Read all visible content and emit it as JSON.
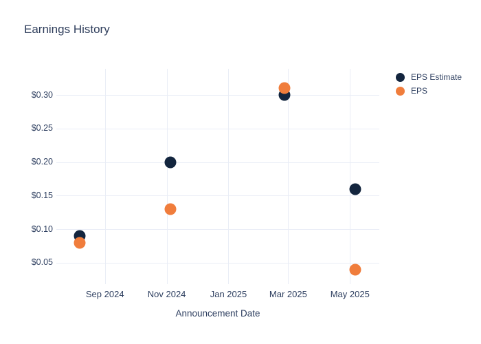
{
  "title": "Earnings History",
  "chart_data": {
    "type": "scatter",
    "title": "Earnings History",
    "xlabel": "Announcement Date",
    "ylabel": "",
    "grid": true,
    "legend_position": "right",
    "x_tick_labels": [
      "Sep 2024",
      "Nov 2024",
      "Jan 2025",
      "Mar 2025",
      "May 2025"
    ],
    "x_tick_dates": [
      "2024-09-01",
      "2024-11-01",
      "2025-01-01",
      "2025-03-01",
      "2025-05-01"
    ],
    "y_tick_labels": [
      "$0.30",
      "$0.25",
      "$0.20",
      "$0.15",
      "$0.10",
      "$0.05"
    ],
    "y_tick_values": [
      0.3,
      0.25,
      0.2,
      0.15,
      0.1,
      0.05
    ],
    "xlim": [
      "2024-07-15",
      "2025-05-30"
    ],
    "ylim": [
      0.018,
      0.339
    ],
    "series": [
      {
        "name": "EPS Estimate",
        "color": "#13253e",
        "points": [
          {
            "date": "2024-08-07",
            "value": 0.09
          },
          {
            "date": "2024-11-05",
            "value": 0.2
          },
          {
            "date": "2025-02-25",
            "value": 0.3
          },
          {
            "date": "2025-05-06",
            "value": 0.16
          }
        ]
      },
      {
        "name": "EPS",
        "color": "#f07d3c",
        "points": [
          {
            "date": "2024-08-07",
            "value": 0.08
          },
          {
            "date": "2024-11-05",
            "value": 0.13
          },
          {
            "date": "2025-02-25",
            "value": 0.31
          },
          {
            "date": "2025-05-06",
            "value": 0.04
          }
        ]
      }
    ]
  }
}
